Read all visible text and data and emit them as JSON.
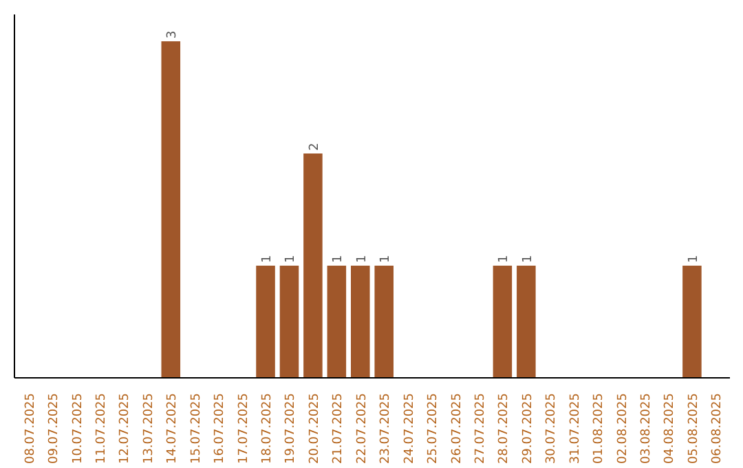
{
  "chart_data": {
    "type": "bar",
    "categories": [
      "08.07.2025",
      "09.07.2025",
      "10.07.2025",
      "11.07.2025",
      "12.07.2025",
      "13.07.2025",
      "14.07.2025",
      "15.07.2025",
      "16.07.2025",
      "17.07.2025",
      "18.07.2025",
      "19.07.2025",
      "20.07.2025",
      "21.07.2025",
      "22.07.2025",
      "23.07.2025",
      "24.07.2025",
      "25.07.2025",
      "26.07.2025",
      "27.07.2025",
      "28.07.2025",
      "29.07.2025",
      "30.07.2025",
      "31.07.2025",
      "01.08.2025",
      "02.08.2025",
      "03.08.2025",
      "04.08.2025",
      "05.08.2025",
      "06.08.2025"
    ],
    "values": [
      0,
      0,
      0,
      0,
      0,
      0,
      3,
      0,
      0,
      0,
      1,
      1,
      2,
      1,
      1,
      1,
      0,
      0,
      0,
      0,
      1,
      1,
      0,
      0,
      0,
      0,
      0,
      0,
      1,
      0
    ],
    "value_labels": [
      null,
      null,
      null,
      null,
      null,
      null,
      "3",
      null,
      null,
      null,
      "1",
      "1",
      "2",
      "1",
      "1",
      "1",
      null,
      null,
      null,
      null,
      "1",
      "1",
      null,
      null,
      null,
      null,
      null,
      null,
      "1",
      null
    ],
    "color": "#a0572a"
  }
}
